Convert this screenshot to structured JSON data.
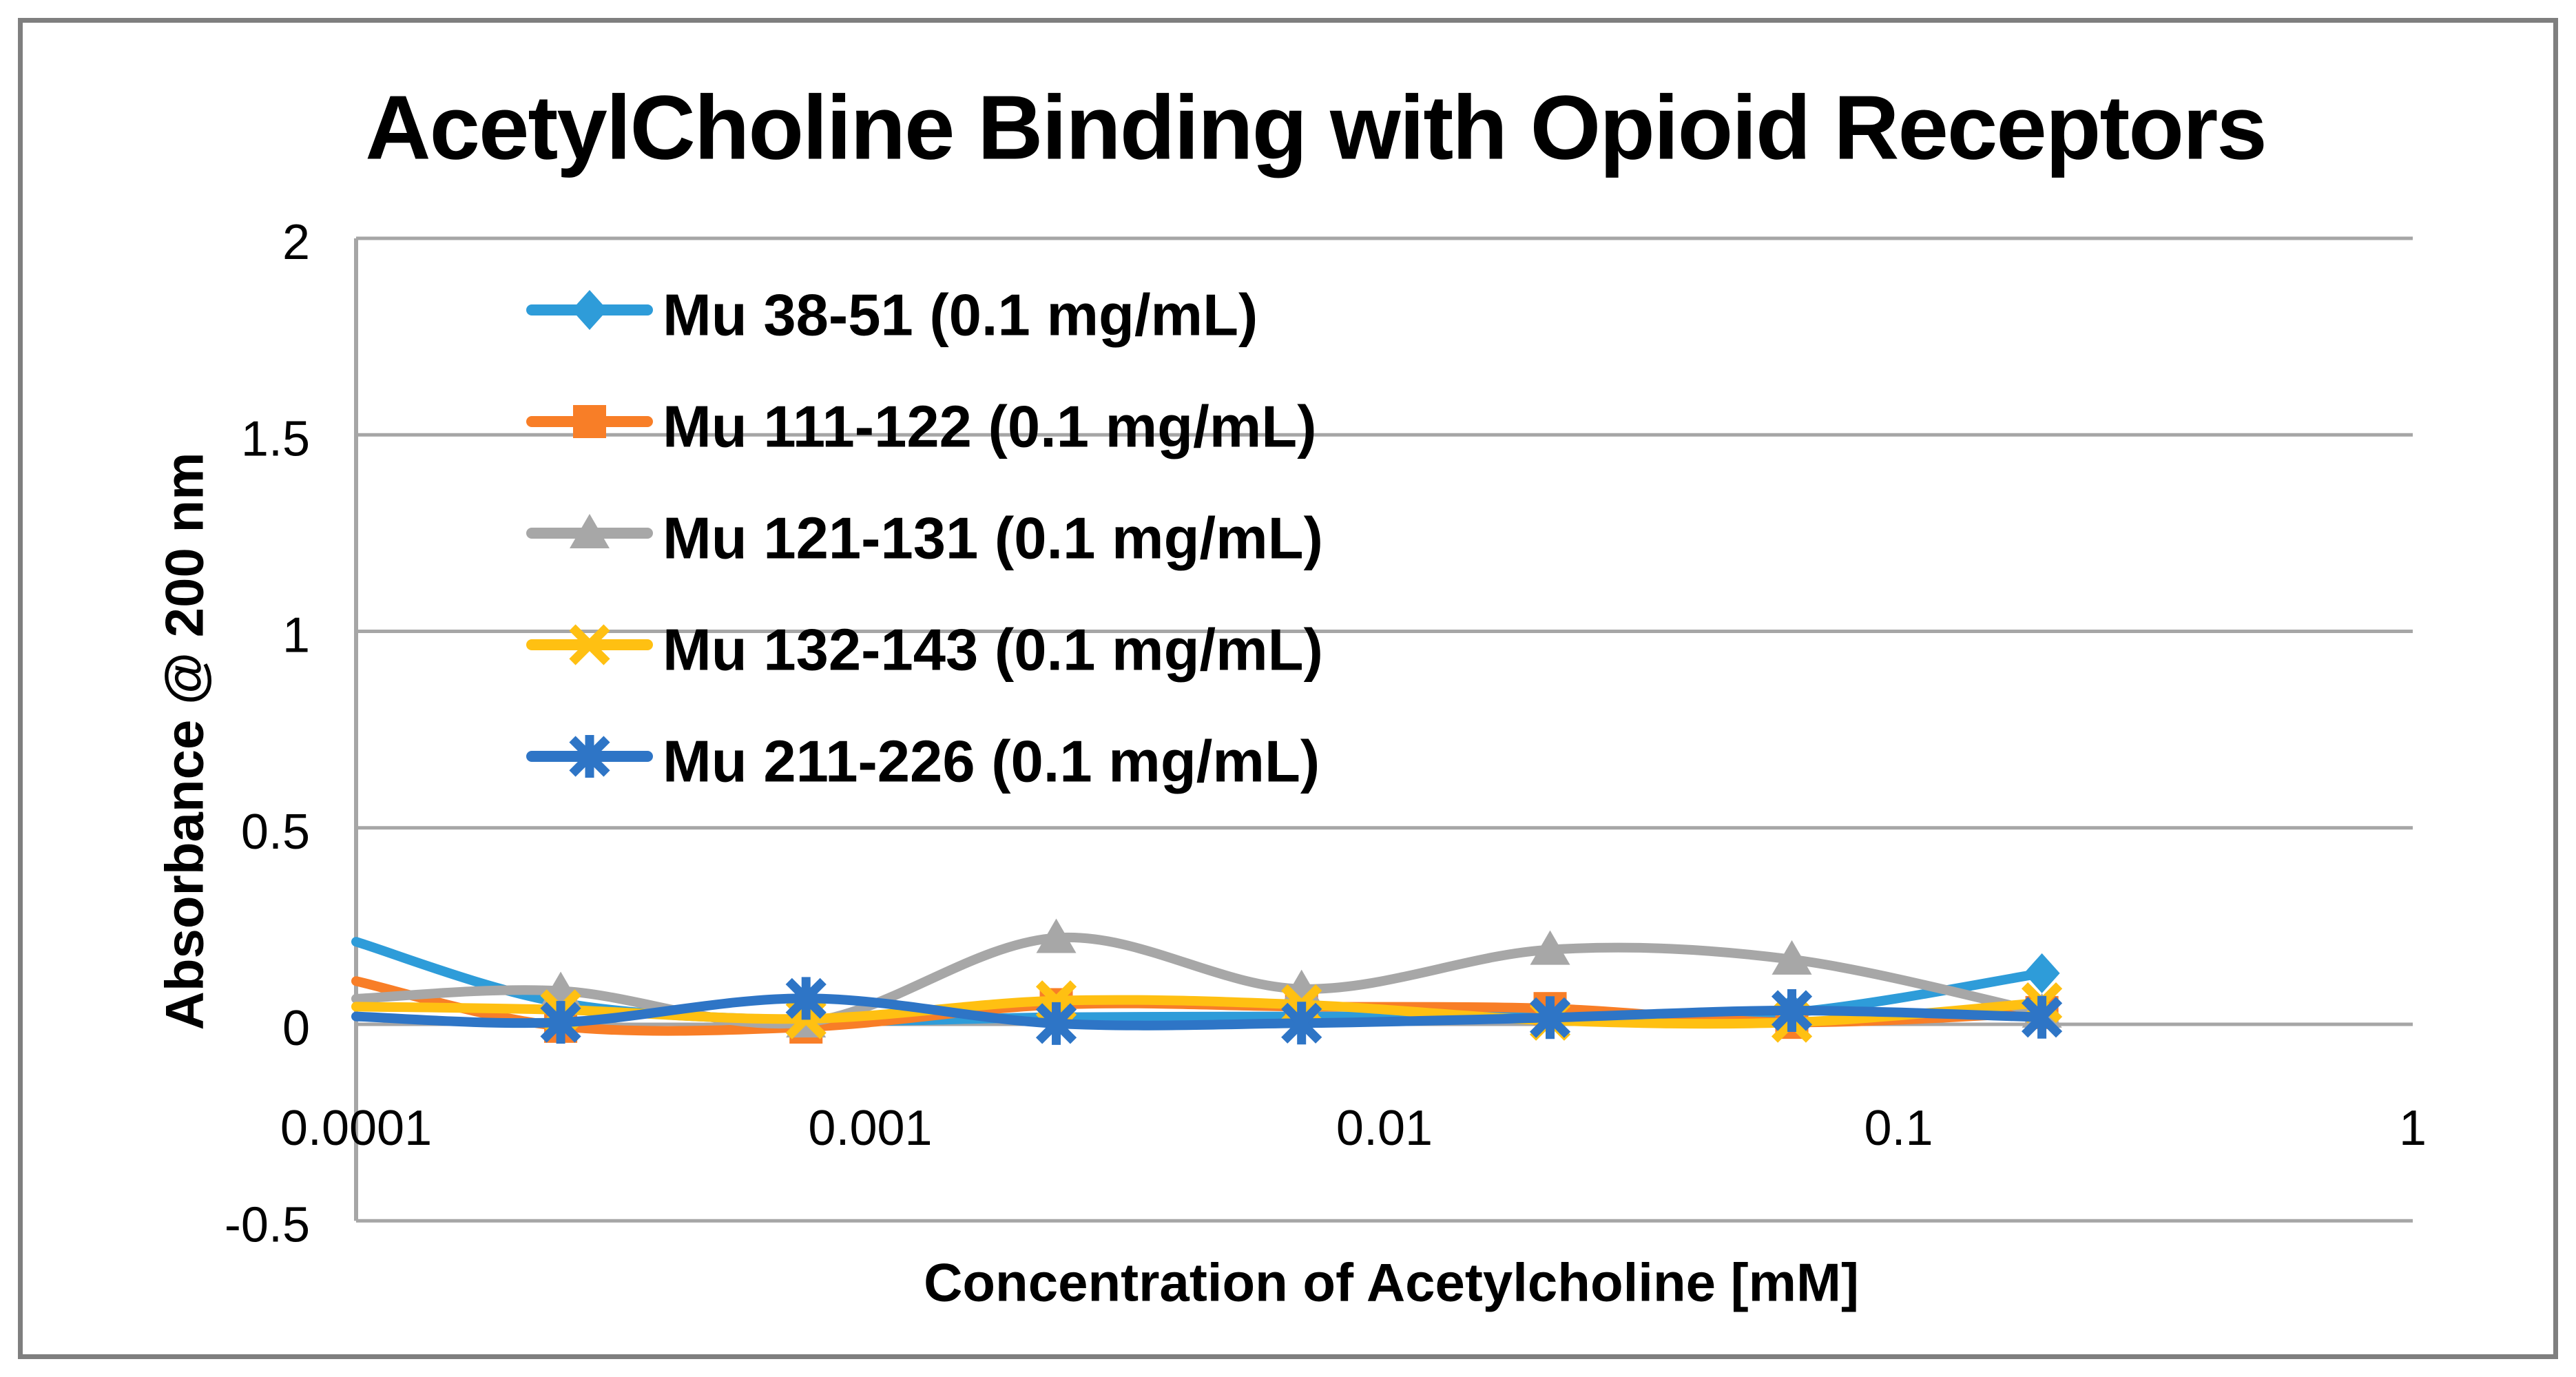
{
  "figure": {
    "background": "#FFFFFF",
    "border_color": "#7F7F7F"
  },
  "chart_data": {
    "type": "line",
    "title": "AcetylCholine Binding with Opioid Receptors",
    "xlabel": "Concentration of Acetylcholine [mM]",
    "ylabel": "Absorbance @ 200 nm",
    "x_scale": "log",
    "xlim": [
      0.0001,
      1
    ],
    "ylim": [
      -0.5,
      2
    ],
    "grid": true,
    "gridline_color": "#A6A6A6",
    "axis_line_color": "#A6A6A6",
    "line_style": "smooth",
    "legend_position": "overlay-top-left",
    "x_tick_labels": [
      "0.0001",
      "0.001",
      "0.01",
      "0.1",
      "1"
    ],
    "x_tick_values": [
      0.0001,
      0.001,
      0.01,
      0.1,
      1
    ],
    "y_tick_labels": [
      "2",
      "1.5",
      "1",
      "0.5",
      "0",
      "-0.5"
    ],
    "y_tick_values": [
      2,
      1.5,
      1,
      0.5,
      0,
      -0.5
    ],
    "x": [
      0.0001,
      0.00025,
      0.00075,
      0.0023,
      0.0069,
      0.021,
      0.062,
      0.19
    ],
    "series": [
      {
        "name": "Mu 38-51 (0.1 mg/mL)",
        "color": "#2E9CD9",
        "marker": "diamond",
        "values": [
          0.21,
          0.055,
          0.01,
          0.018,
          0.02,
          0.02,
          0.03,
          0.13
        ]
      },
      {
        "name": "Mu 111-122 (0.1 mg/mL)",
        "color": "#F87E27",
        "marker": "square",
        "values": [
          0.11,
          -0.005,
          -0.007,
          0.05,
          0.045,
          0.04,
          0.005,
          0.03
        ]
      },
      {
        "name": "Mu 121-131 (0.1 mg/mL)",
        "color": "#A7A7A7",
        "marker": "triangle",
        "values": [
          0.065,
          0.085,
          0.005,
          0.22,
          0.09,
          0.19,
          0.165,
          0.03
        ]
      },
      {
        "name": "Mu 132-143 (0.1 mg/mL)",
        "color": "#FFC012",
        "marker": "x",
        "values": [
          0.045,
          0.037,
          0.014,
          0.06,
          0.05,
          0.01,
          0.005,
          0.055
        ]
      },
      {
        "name": "Mu 211-226 (0.1 mg/mL)",
        "color": "#2E75C6",
        "marker": "asterisk",
        "values": [
          0.02,
          0.005,
          0.066,
          0.002,
          0.003,
          0.017,
          0.035,
          0.018
        ]
      }
    ]
  }
}
